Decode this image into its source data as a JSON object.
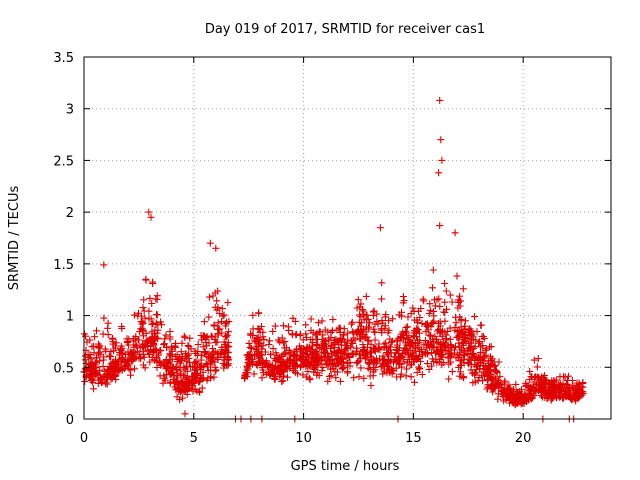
{
  "chart_data": {
    "type": "scatter",
    "title": "Day 019 of 2017, SRMTID for receiver cas1",
    "xlabel": "GPS time / hours",
    "ylabel": "SRMTID / TECUs",
    "xlim": [
      0,
      24
    ],
    "ylim": [
      0,
      3.5
    ],
    "xticks": [
      0,
      5,
      10,
      15,
      20
    ],
    "xtick_labels": [
      "0",
      "5",
      "10",
      "15",
      "20"
    ],
    "yticks": [
      0,
      0.5,
      1,
      1.5,
      2,
      2.5,
      3,
      3.5
    ],
    "ytick_labels": [
      "0",
      "0.5",
      "1",
      "1.5",
      "2",
      "2.5",
      "3",
      "3.5"
    ],
    "grid": true,
    "marker": "+",
    "color": "#e00000",
    "series": [
      {
        "name": "SRMTID",
        "density_profile": {
          "description": "approximate envelope of the dense point cloud, per time bin",
          "x": [
            0,
            0.5,
            1,
            1.5,
            2,
            2.5,
            3,
            3.5,
            4,
            4.5,
            5,
            5.5,
            6,
            6.5,
            7,
            7.5,
            8,
            8.5,
            9,
            9.5,
            10,
            10.5,
            11,
            11.5,
            12,
            12.5,
            13,
            13.5,
            14,
            14.5,
            15,
            15.5,
            16,
            16.5,
            17,
            17.5,
            18,
            18.5,
            19,
            19.5,
            20,
            20.5,
            21,
            21.5,
            22,
            22.5
          ],
          "low": [
            0.3,
            0.25,
            0.2,
            0.3,
            0.35,
            0.4,
            0.45,
            0.3,
            0.2,
            0.1,
            0.15,
            0.2,
            0.3,
            0.35,
            0.0,
            0.4,
            0.4,
            0.3,
            0.3,
            0.35,
            0.3,
            0.35,
            0.3,
            0.3,
            0.35,
            0.3,
            0.3,
            0.25,
            0.3,
            0.3,
            0.3,
            0.35,
            0.3,
            0.3,
            0.25,
            0.25,
            0.25,
            0.15,
            0.15,
            0.1,
            0.1,
            0.15,
            0.15,
            0.15,
            0.15,
            0.15
          ],
          "high": [
            1.0,
            1.2,
            1.0,
            1.0,
            1.1,
            1.3,
            1.9,
            1.2,
            0.9,
            1.1,
            1.0,
            1.2,
            1.6,
            1.3,
            0.0,
            1.0,
            1.3,
            0.9,
            1.0,
            1.2,
            1.0,
            1.1,
            1.1,
            1.0,
            1.1,
            1.3,
            1.2,
            1.5,
            1.1,
            1.3,
            1.2,
            1.5,
            1.8,
            1.4,
            1.7,
            1.2,
            1.3,
            0.9,
            0.5,
            0.35,
            0.4,
            0.7,
            0.5,
            0.45,
            0.45,
            0.4
          ],
          "center": [
            0.5,
            0.5,
            0.45,
            0.55,
            0.6,
            0.7,
            0.8,
            0.6,
            0.45,
            0.35,
            0.45,
            0.55,
            0.7,
            0.7,
            0.0,
            0.6,
            0.65,
            0.5,
            0.55,
            0.65,
            0.6,
            0.6,
            0.65,
            0.6,
            0.65,
            0.7,
            0.7,
            0.7,
            0.6,
            0.7,
            0.65,
            0.7,
            0.8,
            0.7,
            0.75,
            0.65,
            0.6,
            0.4,
            0.3,
            0.2,
            0.2,
            0.3,
            0.3,
            0.25,
            0.25,
            0.25
          ]
        },
        "notable_points": [
          {
            "x": 16.2,
            "y": 3.08
          },
          {
            "x": 16.25,
            "y": 2.7
          },
          {
            "x": 16.3,
            "y": 2.5
          },
          {
            "x": 16.15,
            "y": 2.38
          },
          {
            "x": 2.95,
            "y": 2.0
          },
          {
            "x": 3.05,
            "y": 1.95
          },
          {
            "x": 13.5,
            "y": 1.85
          },
          {
            "x": 16.2,
            "y": 1.87
          },
          {
            "x": 16.9,
            "y": 1.8
          },
          {
            "x": 5.75,
            "y": 1.7
          },
          {
            "x": 6.0,
            "y": 1.65
          },
          {
            "x": 0.9,
            "y": 1.49
          },
          {
            "x": 4.6,
            "y": 0.05
          },
          {
            "x": 4.9,
            "y": 0.3
          }
        ],
        "zero_points_x": [
          6.9,
          7.15,
          7.6,
          8.1,
          9.6,
          14.3,
          20.9,
          22.1,
          22.3
        ]
      }
    ]
  }
}
